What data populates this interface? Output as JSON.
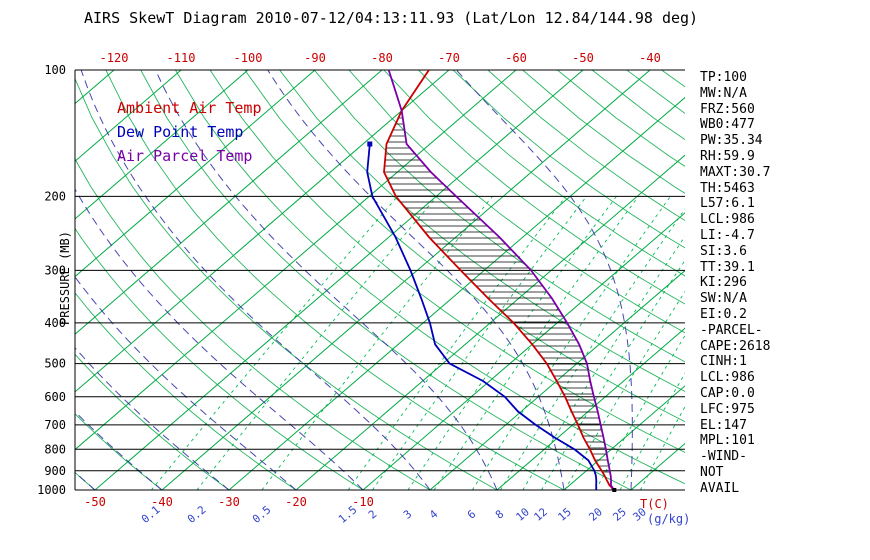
{
  "title": "AIRS SkewT Diagram 2010-07-12/04:13:11.93 (Lat/Lon 12.84/144.98 deg)",
  "axis_units": {
    "temp": "T(C)",
    "mixing": "(g/kg)"
  },
  "legend": [
    {
      "label": "Ambient Air Temp",
      "color": "#cc0000"
    },
    {
      "label": "Dew Point Temp",
      "color": "#0000bb"
    },
    {
      "label": "Air Parcel Temp",
      "color": "#7a00aa"
    }
  ],
  "stats_panel": [
    "TP:100",
    "MW:N/A",
    "FRZ:560",
    "WB0:477",
    "PW:35.34",
    "RH:59.9",
    "MAXT:30.7",
    "TH:5463",
    "L57:6.1",
    "LCL:986",
    "LI:-4.7",
    "SI:3.6",
    "TT:39.1",
    "KI:296",
    "SW:N/A",
    "EI:0.2",
    "-PARCEL-",
    "CAPE:2618",
    "CINH:1",
    "LCL:986",
    "CAP:0.0",
    "LFC:975",
    "EL:147",
    "MPL:101",
    "-WIND-",
    "NOT",
    "AVAIL"
  ],
  "chart_data": {
    "type": "line",
    "title": "AIRS SkewT Diagram 2010-07-12/04:13:11.93 (Lat/Lon 12.84/144.98 deg)",
    "x_axis": {
      "label": "T(C)",
      "skewed": true,
      "top_labels": [
        -120,
        -110,
        -100,
        -90,
        -80,
        -70,
        -60,
        -50,
        -40
      ],
      "bottom_labels": [
        -50,
        -40,
        -30,
        -20,
        -10
      ]
    },
    "y_axis": {
      "label": "PRESSURE (MB)",
      "scale": "log",
      "range": [
        100,
        1000
      ],
      "ticks": [
        100,
        200,
        300,
        400,
        500,
        600,
        700,
        800,
        900,
        1000
      ]
    },
    "isotherms_c": {
      "min": -160,
      "max": 40,
      "step": 10
    },
    "dry_adiabats_c": {
      "min": -50,
      "max": 210,
      "step": 10
    },
    "moist_adiabats_start_c": {
      "min": -120,
      "max": 40,
      "step": 10
    },
    "mixing_ratio_gkg": [
      0.1,
      0.2,
      0.5,
      1.5,
      2,
      3,
      4,
      6,
      8,
      10,
      12,
      15,
      20,
      25,
      30
    ],
    "colors": {
      "isotherm": "#00aa44",
      "adiabat": "#00aa44",
      "mixing": "#00bb55",
      "moist": "#3333aa",
      "ambient": "#cc0000",
      "dewpoint": "#0000bb",
      "parcel": "#7a00aa",
      "hatch": "#000000"
    },
    "series": [
      {
        "name": "Ambient Air Temp",
        "color": "#cc0000",
        "points": [
          [
            1000,
            27.5
          ],
          [
            975,
            26.0
          ],
          [
            950,
            24.8
          ],
          [
            925,
            23.6
          ],
          [
            900,
            22.3
          ],
          [
            850,
            19.5
          ],
          [
            800,
            16.8
          ],
          [
            750,
            13.8
          ],
          [
            700,
            10.8
          ],
          [
            650,
            7.5
          ],
          [
            600,
            4.0
          ],
          [
            550,
            0.0
          ],
          [
            500,
            -4.5
          ],
          [
            450,
            -10.0
          ],
          [
            400,
            -16.5
          ],
          [
            350,
            -24.5
          ],
          [
            300,
            -33.5
          ],
          [
            250,
            -44.0
          ],
          [
            200,
            -56.0
          ],
          [
            175,
            -62.0
          ],
          [
            150,
            -66.5
          ],
          [
            125,
            -70.0
          ],
          [
            100,
            -73.0
          ]
        ]
      },
      {
        "name": "Dew Point Temp",
        "color": "#0000bb",
        "points": [
          [
            1000,
            24.8
          ],
          [
            975,
            24.0
          ],
          [
            950,
            23.2
          ],
          [
            925,
            22.3
          ],
          [
            900,
            21.2
          ],
          [
            850,
            18.5
          ],
          [
            800,
            14.5
          ],
          [
            750,
            9.5
          ],
          [
            700,
            4.5
          ],
          [
            650,
            -0.5
          ],
          [
            600,
            -5.0
          ],
          [
            550,
            -11.0
          ],
          [
            500,
            -19.0
          ],
          [
            450,
            -24.5
          ],
          [
            400,
            -29.0
          ],
          [
            350,
            -34.5
          ],
          [
            300,
            -41.0
          ],
          [
            250,
            -49.0
          ],
          [
            200,
            -59.5
          ],
          [
            175,
            -64.5
          ],
          [
            150,
            -69.0
          ]
        ]
      },
      {
        "name": "Air Parcel Temp",
        "color": "#7a00aa",
        "points": [
          [
            1000,
            27.2
          ],
          [
            986,
            26.8
          ],
          [
            975,
            26.2
          ],
          [
            950,
            25.4
          ],
          [
            925,
            24.5
          ],
          [
            900,
            23.5
          ],
          [
            850,
            21.4
          ],
          [
            800,
            19.2
          ],
          [
            750,
            16.8
          ],
          [
            700,
            14.2
          ],
          [
            650,
            11.4
          ],
          [
            600,
            8.3
          ],
          [
            550,
            5.0
          ],
          [
            500,
            1.5
          ],
          [
            450,
            -3.0
          ],
          [
            400,
            -8.5
          ],
          [
            350,
            -15.0
          ],
          [
            300,
            -23.0
          ],
          [
            250,
            -33.5
          ],
          [
            200,
            -47.0
          ],
          [
            175,
            -55.0
          ],
          [
            150,
            -63.5
          ],
          [
            125,
            -70.0
          ],
          [
            100,
            -79.0
          ]
        ]
      }
    ],
    "cape_hatch_between": [
      "Ambient Air Temp",
      "Air Parcel Temp"
    ]
  }
}
